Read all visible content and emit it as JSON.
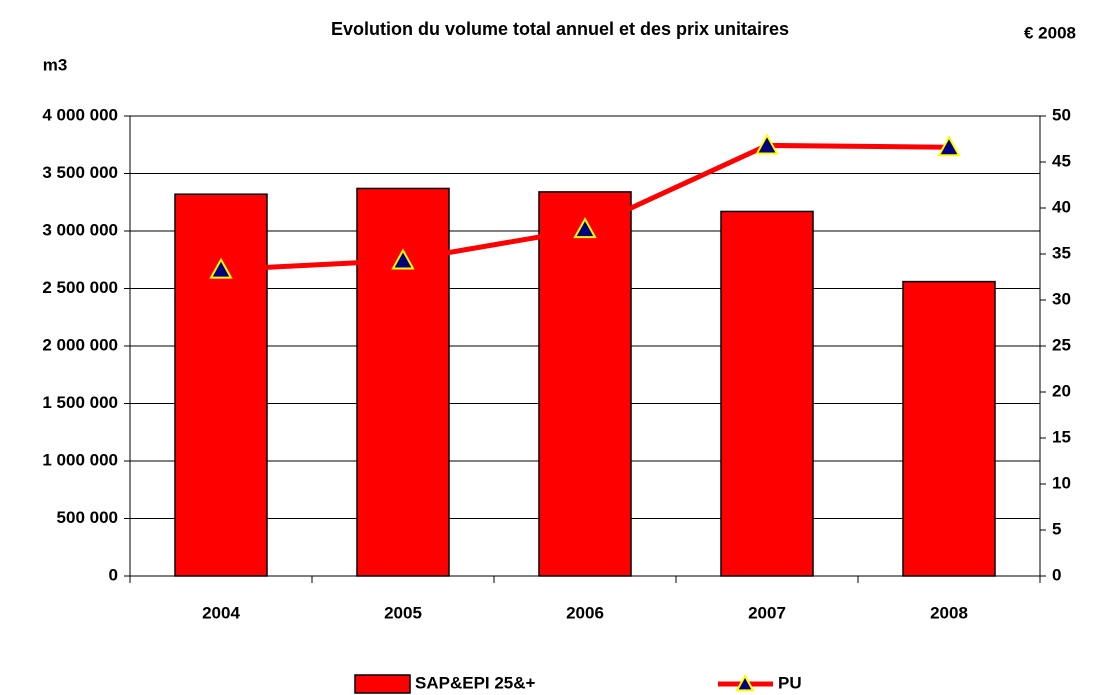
{
  "chart_data": {
    "type": "bar",
    "title": "Evolution du volume total annuel et des prix unitaires",
    "ylabel": "m3",
    "y2label": "€ 2008",
    "categories": [
      "2004",
      "2005",
      "2006",
      "2007",
      "2008"
    ],
    "series": [
      {
        "name": "SAP&EPI 25&+",
        "type": "bar",
        "axis": "y",
        "color": "#ff0000",
        "values": [
          3320000,
          3370000,
          3340000,
          3170000,
          2560000
        ]
      },
      {
        "name": "PU",
        "type": "line",
        "axis": "y2",
        "color": "#ff0000",
        "marker_color": "#000080",
        "marker_edge_color": "#ffff00",
        "values": [
          33.3,
          34.3,
          37.7,
          46.8,
          46.6
        ]
      }
    ],
    "ylim": [
      0,
      4000000
    ],
    "yticks": [
      {
        "value": 0,
        "label": "0"
      },
      {
        "value": 500000,
        "label": "500 000"
      },
      {
        "value": 1000000,
        "label": "1 000 000"
      },
      {
        "value": 1500000,
        "label": "1 500 000"
      },
      {
        "value": 2000000,
        "label": "2 000 000"
      },
      {
        "value": 2500000,
        "label": "2 500 000"
      },
      {
        "value": 3000000,
        "label": "3 000 000"
      },
      {
        "value": 3500000,
        "label": "3 500 000"
      },
      {
        "value": 4000000,
        "label": "4 000 000"
      }
    ],
    "y2lim": [
      0,
      50
    ],
    "y2ticks": [
      0,
      5,
      10,
      15,
      20,
      25,
      30,
      35,
      40,
      45,
      50
    ],
    "grid": true,
    "legend": "bottom"
  }
}
